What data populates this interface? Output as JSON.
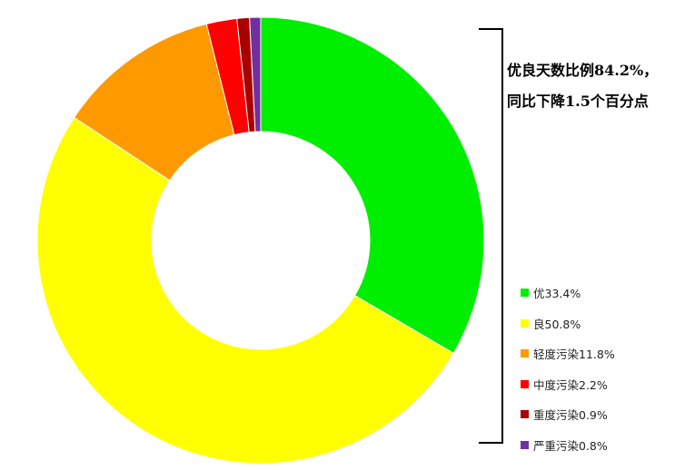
{
  "note": {
    "line1": "优良天数比例84.2%，",
    "line2": "同比下降1.5个百分点"
  },
  "chart_data": {
    "type": "pie",
    "donut": true,
    "start": "top, clockwise",
    "categories": [
      "优",
      "良",
      "轻度污染",
      "中度污染",
      "重度污染",
      "严重污染"
    ],
    "values": [
      33.4,
      50.8,
      11.8,
      2.2,
      0.9,
      0.8
    ],
    "colors": [
      "#00ee00",
      "#ffff00",
      "#ff9900",
      "#ff0000",
      "#aa0000",
      "#7030a0"
    ],
    "legend_labels": [
      "优33.4%",
      "良50.8%",
      "轻度污染11.8%",
      "中度污染2.2%",
      "重度污染0.9%",
      "严重污染0.8%"
    ],
    "legend": "right"
  }
}
